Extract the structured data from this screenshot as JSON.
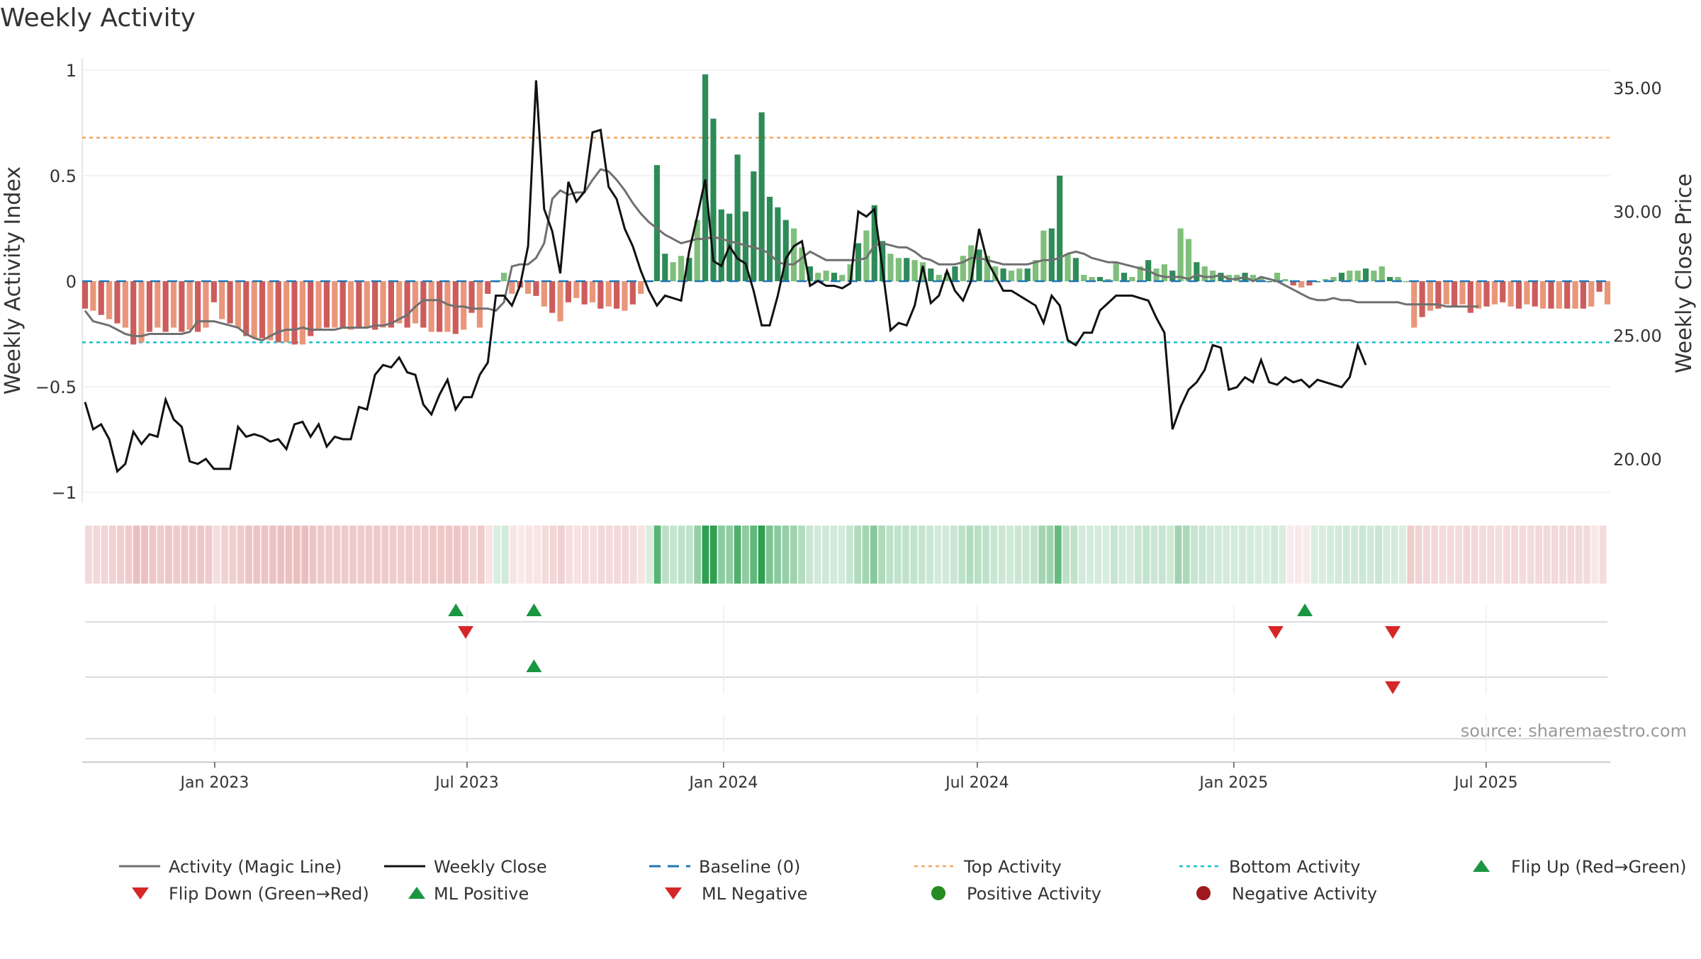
{
  "title": "Weekly Activity",
  "watermark": "source: sharemaestro.com",
  "colors": {
    "pos_dark": "#2e8b57",
    "pos_light": "#7fbf7b",
    "neg_dark": "#cd5c5c",
    "neg_light": "#e9967a",
    "close_line": "#111111",
    "magic_line": "#707070",
    "baseline": "#1f77b4",
    "top_line": "#f4a460",
    "bottom_line": "#17becf",
    "flip_up": "#1a9641",
    "flip_down": "#d62728",
    "neg_dot": "#a0191e",
    "grid": "#eeeeee",
    "axis_text": "#333333"
  },
  "chart_data": {
    "type": "bar",
    "start_date": "2022-09-30",
    "end_date": "2025-09-26",
    "x_ticks": [
      "Jan 2023",
      "Jul 2023",
      "Jan 2024",
      "Jul 2024",
      "Jan 2025",
      "Jul 2025"
    ],
    "left_axis": {
      "label": "Weekly Activity Index",
      "ylim": [
        -1.05,
        1.06
      ],
      "ticks": [
        1,
        0.5,
        0,
        -0.5,
        -1
      ],
      "tick_labels": [
        "1",
        "0.5",
        "0",
        "−0.5",
        "−1"
      ]
    },
    "right_axis": {
      "label": "Weekly Close Price",
      "ylim": [
        18.5,
        36.0
      ],
      "ticks": [
        35,
        30,
        25,
        20
      ],
      "tick_labels": [
        "35.00",
        "30.00",
        "25.00",
        "20.00"
      ]
    },
    "top_activity": 0.68,
    "bottom_activity": -0.29,
    "activity": [
      -0.13,
      -0.14,
      -0.16,
      -0.18,
      -0.2,
      -0.22,
      -0.3,
      -0.29,
      -0.24,
      -0.22,
      -0.24,
      -0.22,
      -0.24,
      -0.23,
      -0.24,
      -0.22,
      -0.1,
      -0.18,
      -0.2,
      -0.22,
      -0.26,
      -0.27,
      -0.27,
      -0.28,
      -0.29,
      -0.29,
      -0.3,
      -0.3,
      -0.26,
      -0.23,
      -0.22,
      -0.22,
      -0.22,
      -0.23,
      -0.22,
      -0.22,
      -0.23,
      -0.22,
      -0.22,
      -0.2,
      -0.22,
      -0.2,
      -0.22,
      -0.24,
      -0.24,
      -0.24,
      -0.25,
      -0.23,
      -0.15,
      -0.22,
      -0.06,
      0.0,
      0.04,
      -0.06,
      -0.03,
      -0.06,
      -0.07,
      -0.12,
      -0.15,
      -0.19,
      -0.1,
      -0.08,
      -0.11,
      -0.1,
      -0.13,
      -0.12,
      -0.13,
      -0.14,
      -0.11,
      -0.06,
      0.0,
      0.55,
      0.13,
      0.09,
      0.12,
      0.11,
      0.29,
      0.98,
      0.77,
      0.34,
      0.32,
      0.6,
      0.33,
      0.52,
      0.8,
      0.4,
      0.35,
      0.29,
      0.25,
      0.16,
      0.07,
      0.04,
      0.05,
      0.04,
      0.03,
      0.08,
      0.18,
      0.24,
      0.36,
      0.19,
      0.13,
      0.11,
      0.11,
      0.1,
      0.09,
      0.06,
      0.03,
      0.04,
      0.07,
      0.12,
      0.17,
      0.15,
      0.12,
      0.07,
      0.06,
      0.05,
      0.06,
      0.06,
      0.1,
      0.24,
      0.25,
      0.5,
      0.13,
      0.11,
      0.03,
      0.02,
      0.02,
      0.01,
      0.09,
      0.04,
      0.02,
      0.07,
      0.1,
      0.06,
      0.08,
      0.05,
      0.25,
      0.2,
      0.09,
      0.07,
      0.05,
      0.04,
      0.03,
      0.03,
      0.04,
      0.03,
      0.02,
      0.0,
      0.04,
      0.01,
      -0.02,
      -0.03,
      -0.02,
      0.0,
      0.01,
      0.02,
      0.04,
      0.05,
      0.05,
      0.06,
      0.05,
      0.07,
      0.02,
      0.02,
      0.0,
      -0.22,
      -0.17,
      -0.14,
      -0.13,
      -0.11,
      -0.12,
      -0.11,
      -0.15,
      -0.13,
      -0.12,
      -0.11,
      -0.1,
      -0.12,
      -0.13,
      -0.11,
      -0.12,
      -0.13,
      -0.13,
      -0.13,
      -0.13,
      -0.13,
      -0.13,
      -0.12,
      -0.05,
      -0.11
    ],
    "weekly_close": [
      22.3,
      21.2,
      21.4,
      20.8,
      19.5,
      19.8,
      21.1,
      20.6,
      21.0,
      20.9,
      22.4,
      21.6,
      21.3,
      19.9,
      19.8,
      20.0,
      19.6,
      19.6,
      19.6,
      21.3,
      20.9,
      21.0,
      20.9,
      20.7,
      20.8,
      20.4,
      21.4,
      21.5,
      20.9,
      21.4,
      20.5,
      20.9,
      20.8,
      20.8,
      22.1,
      22.0,
      23.4,
      23.8,
      23.7,
      24.1,
      23.5,
      23.4,
      22.2,
      21.8,
      22.6,
      23.2,
      22.0,
      22.5,
      22.5,
      23.4,
      23.9,
      26.6,
      26.6,
      26.2,
      27.0,
      28.6,
      35.3,
      30.1,
      29.2,
      27.5,
      31.2,
      30.4,
      30.8,
      33.2,
      33.3,
      31.0,
      30.5,
      29.3,
      28.6,
      27.6,
      26.8,
      26.2,
      26.6,
      26.5,
      26.4,
      28.4,
      29.8,
      31.3,
      28.0,
      27.8,
      28.6,
      28.1,
      27.9,
      26.8,
      25.4,
      25.4,
      26.6,
      28.1,
      28.6,
      28.8,
      27.0,
      27.2,
      27.0,
      27.0,
      26.9,
      27.1,
      30.0,
      29.8,
      30.1,
      27.7,
      25.2,
      25.5,
      25.4,
      26.2,
      27.8,
      26.3,
      26.6,
      27.6,
      26.8,
      26.4,
      27.2,
      29.3,
      28.0,
      27.4,
      26.8,
      26.8,
      26.6,
      26.4,
      26.2,
      25.5,
      26.6,
      26.2,
      24.8,
      24.6,
      25.1,
      25.1,
      26.0,
      26.3,
      26.6,
      26.6,
      26.6,
      26.5,
      26.4,
      25.7,
      25.1,
      21.2,
      22.1,
      22.8,
      23.1,
      23.6,
      24.6,
      24.5,
      22.8,
      22.9,
      23.3,
      23.1,
      24.0,
      23.1,
      23.0,
      23.3,
      23.1,
      23.2,
      22.9,
      23.2,
      23.1,
      23.0,
      22.9,
      23.3,
      24.6,
      23.8
    ],
    "magic_line": [
      -0.14,
      -0.19,
      -0.2,
      -0.21,
      -0.23,
      -0.25,
      -0.26,
      -0.26,
      -0.25,
      -0.25,
      -0.25,
      -0.25,
      -0.25,
      -0.24,
      -0.19,
      -0.19,
      -0.19,
      -0.2,
      -0.21,
      -0.22,
      -0.25,
      -0.27,
      -0.28,
      -0.26,
      -0.24,
      -0.23,
      -0.23,
      -0.22,
      -0.23,
      -0.23,
      -0.23,
      -0.23,
      -0.22,
      -0.22,
      -0.22,
      -0.22,
      -0.21,
      -0.21,
      -0.2,
      -0.18,
      -0.16,
      -0.12,
      -0.09,
      -0.09,
      -0.09,
      -0.11,
      -0.12,
      -0.12,
      -0.13,
      -0.13,
      -0.13,
      -0.14,
      -0.1,
      0.07,
      0.08,
      0.08,
      0.11,
      0.18,
      0.39,
      0.43,
      0.41,
      0.42,
      0.42,
      0.48,
      0.53,
      0.52,
      0.48,
      0.43,
      0.37,
      0.32,
      0.28,
      0.25,
      0.22,
      0.2,
      0.18,
      0.19,
      0.2,
      0.2,
      0.21,
      0.2,
      0.19,
      0.18,
      0.17,
      0.16,
      0.15,
      0.13,
      0.09,
      0.08,
      0.08,
      0.11,
      0.14,
      0.12,
      0.1,
      0.1,
      0.1,
      0.1,
      0.1,
      0.11,
      0.17,
      0.18,
      0.17,
      0.16,
      0.16,
      0.14,
      0.11,
      0.1,
      0.08,
      0.08,
      0.08,
      0.09,
      0.11,
      0.11,
      0.1,
      0.09,
      0.08,
      0.08,
      0.08,
      0.08,
      0.09,
      0.1,
      0.1,
      0.11,
      0.13,
      0.14,
      0.13,
      0.11,
      0.1,
      0.09,
      0.09,
      0.08,
      0.07,
      0.06,
      0.05,
      0.03,
      0.02,
      0.02,
      0.02,
      0.01,
      0.03,
      0.02,
      0.02,
      0.03,
      0.01,
      0.01,
      0.02,
      0.0,
      0.02,
      0.01,
      0.0,
      -0.02,
      -0.04,
      -0.06,
      -0.08,
      -0.09,
      -0.09,
      -0.08,
      -0.09,
      -0.09,
      -0.1,
      -0.1,
      -0.1,
      -0.1,
      -0.1,
      -0.1,
      -0.11,
      -0.11,
      -0.11,
      -0.11,
      -0.11,
      -0.12,
      -0.12,
      -0.12,
      -0.12,
      -0.12
    ],
    "heat_strip": "activity-coloured week cells",
    "signals": {
      "flip_up": [
        "2023-06-23",
        "2023-08-18",
        "2025-02-21"
      ],
      "flip_down": [
        "2023-06-30",
        "2025-01-31",
        "2025-04-25"
      ],
      "ml_positive": [
        "2023-08-18"
      ],
      "ml_negative": [
        "2025-04-25"
      ],
      "positive_activity": [],
      "negative_activity": []
    }
  },
  "legend": [
    {
      "key": "magic",
      "label": "Activity (Magic Line)"
    },
    {
      "key": "close",
      "label": "Weekly Close"
    },
    {
      "key": "baseline",
      "label": "Baseline (0)"
    },
    {
      "key": "top",
      "label": "Top Activity"
    },
    {
      "key": "bottom",
      "label": "Bottom Activity"
    },
    {
      "key": "flipup",
      "label": "Flip Up (Red→Green)"
    },
    {
      "key": "flipdown",
      "label": "Flip Down (Green→Red)"
    },
    {
      "key": "mlpos",
      "label": "ML Positive"
    },
    {
      "key": "mlneg",
      "label": "ML Negative"
    },
    {
      "key": "posact",
      "label": "Positive Activity"
    },
    {
      "key": "negact",
      "label": "Negative Activity"
    }
  ]
}
